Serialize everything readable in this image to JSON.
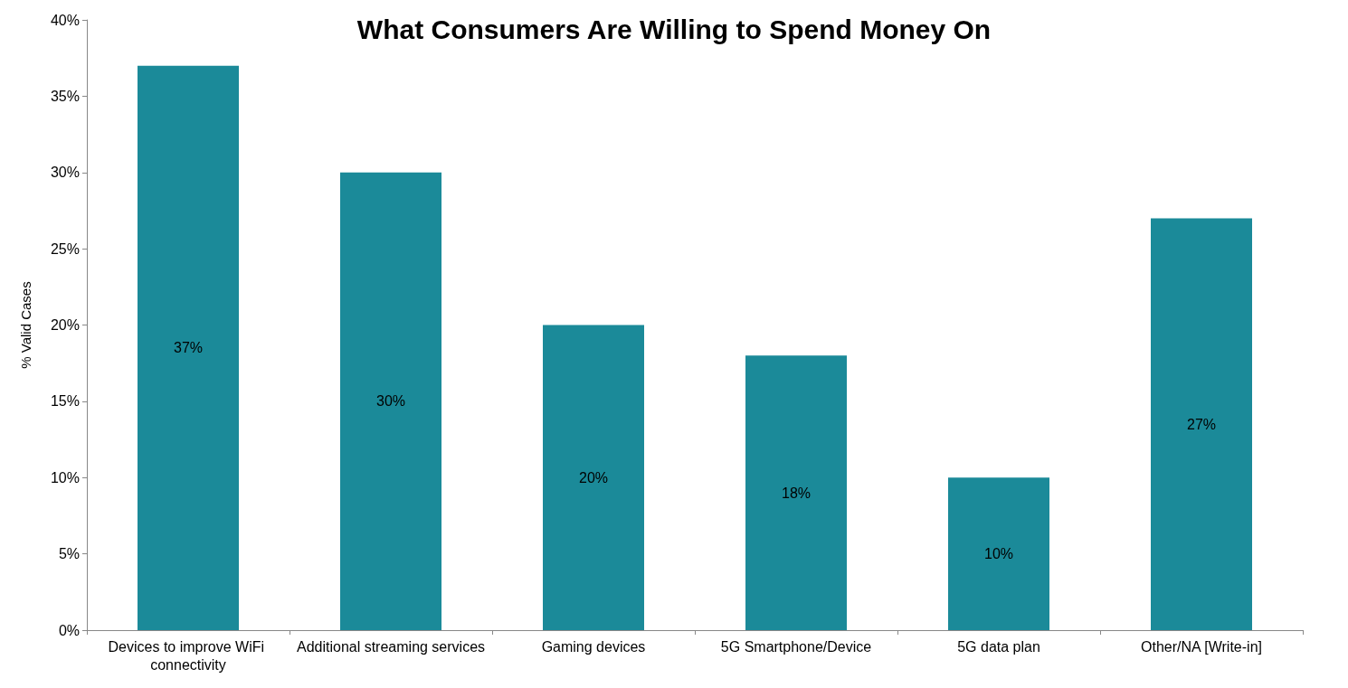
{
  "chart_data": {
    "type": "bar",
    "title": "What Consumers Are Willing to Spend Money On",
    "ylabel": "% Valid Cases",
    "categories": [
      "Devices to improve WiFi connectivity",
      "Additional streaming services",
      "Gaming devices",
      "5G Smartphone/Device",
      "5G data plan",
      "Other/NA [Write-in]"
    ],
    "values": [
      37,
      30,
      20,
      18,
      10,
      27
    ],
    "value_labels": [
      "37%",
      "30%",
      "20%",
      "18%",
      "10%",
      "27%"
    ],
    "color": "#1b8a99",
    "ylim": [
      0,
      40
    ],
    "yticks": [
      {
        "value": 0,
        "label": "0%"
      },
      {
        "value": 5,
        "label": "5%"
      },
      {
        "value": 10,
        "label": "10%"
      },
      {
        "value": 15,
        "label": "15%"
      },
      {
        "value": 20,
        "label": "20%"
      },
      {
        "value": 25,
        "label": "25%"
      },
      {
        "value": 30,
        "label": "30%"
      },
      {
        "value": 35,
        "label": "35%"
      },
      {
        "value": 40,
        "label": "40%"
      }
    ],
    "grid": false
  }
}
